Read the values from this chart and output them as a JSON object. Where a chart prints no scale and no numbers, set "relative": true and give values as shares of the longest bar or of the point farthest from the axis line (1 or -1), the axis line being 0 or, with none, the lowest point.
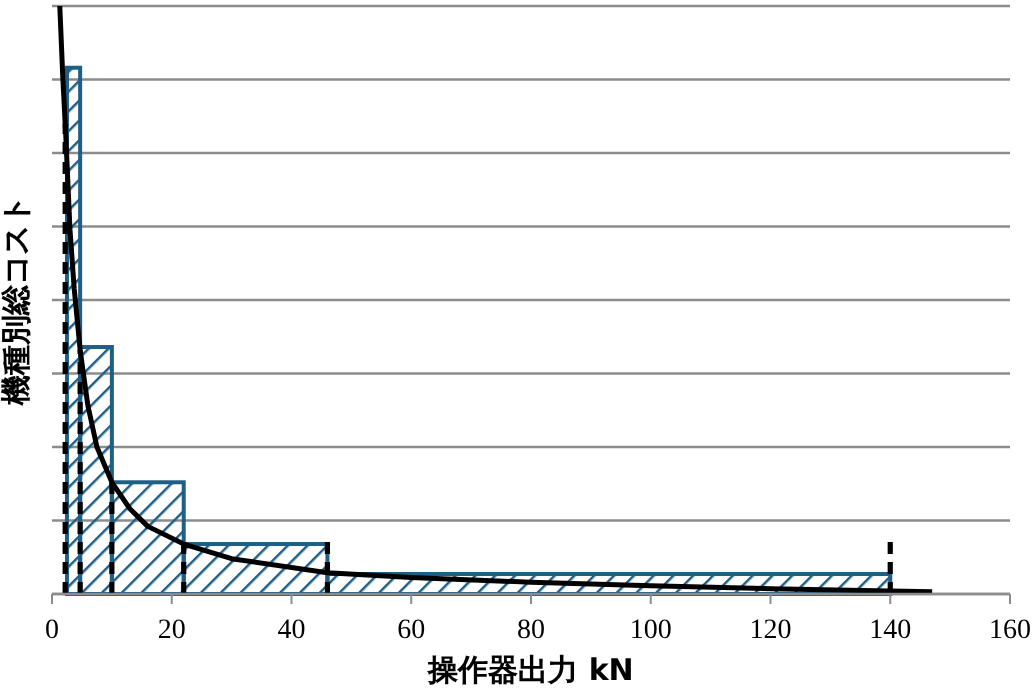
{
  "chart_data": {
    "type": "histogram",
    "relative": true,
    "xlabel": "操作器出力 kN",
    "ylabel": "機種別総コスト",
    "xlim": [
      0,
      160
    ],
    "xticks": [
      0,
      20,
      40,
      60,
      80,
      100,
      120,
      140,
      160
    ],
    "grid": "y",
    "tick_labels": "x",
    "series": [
      {
        "color": "#1f5f86",
        "bins": [
          2.5,
          4.7,
          10,
          22,
          46,
          140
        ],
        "values": [
          0.895,
          0.42,
          0.19,
          0.085,
          0.034
        ]
      },
      {
        "type": "line",
        "color": "#000000",
        "x": [
          1.3,
          1.8,
          2.3,
          3,
          3.7,
          4.7,
          6,
          7.5,
          10,
          13,
          16,
          22,
          30,
          46,
          60,
          80,
          100,
          120,
          140,
          147
        ],
        "values": [
          1.0,
          0.88,
          0.78,
          0.62,
          0.52,
          0.415,
          0.32,
          0.25,
          0.19,
          0.145,
          0.115,
          0.085,
          0.06,
          0.036,
          0.028,
          0.02,
          0.014,
          0.009,
          0.005,
          0.004
        ]
      }
    ],
    "ref_lines": [
      {
        "axis": "x",
        "value": 2.2,
        "line_style": "dashed",
        "color": "#000000"
      },
      {
        "axis": "x",
        "value": 4.7,
        "line_style": "dashed",
        "color": "#000000"
      },
      {
        "axis": "x",
        "value": 10,
        "line_style": "dashed",
        "color": "#000000"
      },
      {
        "axis": "x",
        "value": 22,
        "line_style": "dashed",
        "color": "#000000"
      },
      {
        "axis": "x",
        "value": 46,
        "line_style": "dashed",
        "color": "#000000"
      },
      {
        "axis": "x",
        "value": 140,
        "line_style": "dashed",
        "color": "#000000"
      }
    ]
  }
}
